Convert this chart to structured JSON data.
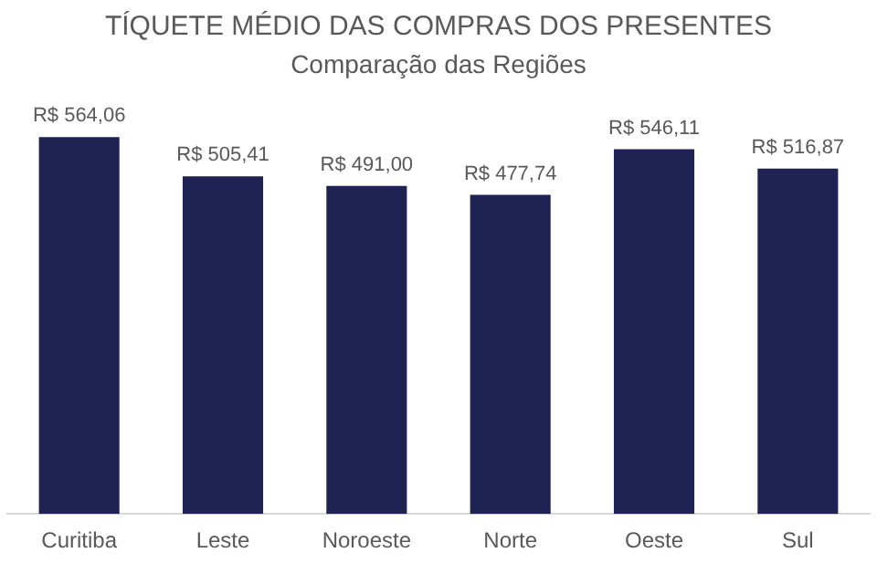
{
  "chart_data": {
    "type": "bar",
    "title": "TÍQUETE MÉDIO DAS COMPRAS DOS PRESENTES",
    "subtitle": "Comparação das Regiões",
    "categories": [
      "Curitiba",
      "Leste",
      "Noroeste",
      "Norte",
      "Oeste",
      "Sul"
    ],
    "values": [
      564.06,
      505.41,
      491.0,
      477.74,
      546.11,
      516.87
    ],
    "value_labels": [
      "R$ 564,06",
      "R$ 505,41",
      "R$ 491,00",
      "R$ 477,74",
      "R$ 546,11",
      "R$ 516,87"
    ],
    "color": "#1f2353",
    "tick_labels": "x",
    "grid": false,
    "legend": false
  }
}
